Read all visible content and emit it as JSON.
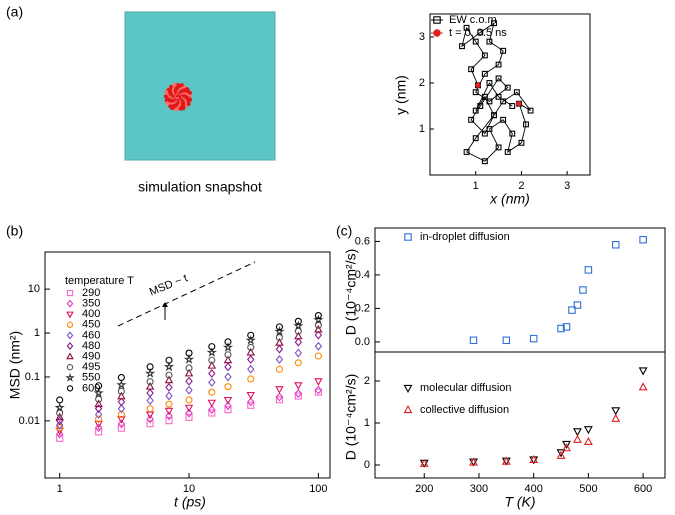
{
  "panel_labels": [
    "(a)",
    "(b)",
    "(c)"
  ],
  "snapshot_caption": "simulation snapshot",
  "chart_data": [
    {
      "type": "line",
      "xlabel": "x (nm)",
      "ylabel": "y (nm)",
      "xlim": [
        0,
        3.5
      ],
      "ylim": [
        0,
        3.5
      ],
      "xticks": [
        1,
        2,
        3
      ],
      "yticks": [
        1,
        2,
        3
      ],
      "series": [
        {
          "name": "EW c.o.m",
          "color": "#000000",
          "marker": "square",
          "filled": false,
          "x": [
            1.05,
            0.9,
            1.2,
            1.0,
            0.8,
            0.7,
            1.1,
            1.4,
            1.3,
            1.6,
            1.5,
            1.2,
            1.0,
            1.3,
            1.7,
            1.5,
            1.1,
            0.9,
            1.2,
            1.4,
            1.0,
            0.8,
            1.2,
            1.5,
            1.3,
            1.6,
            1.8,
            1.7,
            2.0,
            2.1,
            1.95,
            2.2,
            1.9,
            1.6,
            1.4,
            1.2,
            1.0,
            1.3,
            1.5,
            1.8
          ],
          "values": [
            1.95,
            2.3,
            2.6,
            2.9,
            3.2,
            2.8,
            3.1,
            3.3,
            2.9,
            2.7,
            2.4,
            2.2,
            1.8,
            1.6,
            1.9,
            2.1,
            1.5,
            1.2,
            0.9,
            1.3,
            0.8,
            0.5,
            0.3,
            0.6,
            1.0,
            1.2,
            0.9,
            0.5,
            0.7,
            1.1,
            1.55,
            1.4,
            1.8,
            1.6,
            1.3,
            1.7,
            1.4,
            2.0,
            1.7,
            1.5
          ]
        },
        {
          "name": "t = 0, 0.5 ns",
          "color": "#e02020",
          "marker": "circle",
          "filled": true,
          "x": [
            1.05,
            1.95
          ],
          "values": [
            1.95,
            1.55
          ]
        }
      ]
    },
    {
      "type": "scatter",
      "xlabel": "t (ps)",
      "ylabel": "MSD (nm²)",
      "log_x": true,
      "log_y": true,
      "xlim": [
        0.77,
        123
      ],
      "ylim": [
        0.0005,
        70
      ],
      "xticks": [
        1,
        10,
        100
      ],
      "yticks": [
        0.01,
        0.1,
        1,
        10
      ],
      "legend_title": "temperature T",
      "annotation": "MSD ~ t",
      "x": [
        1,
        2,
        3,
        5,
        7,
        10,
        15,
        20,
        30,
        50,
        70,
        100
      ],
      "series": [
        {
          "name": "290",
          "color": "#ff66cc",
          "marker": "square",
          "values": [
            0.004,
            0.0056,
            0.0068,
            0.0086,
            0.0101,
            0.012,
            0.0151,
            0.0179,
            0.0226,
            0.0302,
            0.0367,
            0.045
          ]
        },
        {
          "name": "350",
          "color": "#d63fbf",
          "marker": "diamond",
          "values": [
            0.005,
            0.007,
            0.0085,
            0.011,
            0.013,
            0.015,
            0.018,
            0.022,
            0.027,
            0.035,
            0.042,
            0.05
          ]
        },
        {
          "name": "400",
          "color": "#e0115f",
          "marker": "triangle-down",
          "values": [
            0.006,
            0.0086,
            0.011,
            0.014,
            0.017,
            0.02,
            0.026,
            0.03,
            0.039,
            0.053,
            0.065,
            0.08
          ]
        },
        {
          "name": "450",
          "color": "#ff8800",
          "marker": "circle",
          "values": [
            0.007,
            0.011,
            0.014,
            0.019,
            0.024,
            0.03,
            0.045,
            0.06,
            0.09,
            0.15,
            0.21,
            0.3
          ]
        },
        {
          "name": "460",
          "color": "#7b52c7",
          "marker": "diamond",
          "values": [
            0.008,
            0.014,
            0.019,
            0.029,
            0.037,
            0.05,
            0.075,
            0.1,
            0.15,
            0.25,
            0.35,
            0.5
          ]
        },
        {
          "name": "480",
          "color": "#8b1a89",
          "marker": "diamond",
          "values": [
            0.01,
            0.019,
            0.027,
            0.043,
            0.058,
            0.08,
            0.12,
            0.17,
            0.25,
            0.43,
            0.62,
            0.9
          ]
        },
        {
          "name": "490",
          "color": "#8b0a3a",
          "marker": "triangle-up",
          "values": [
            0.012,
            0.024,
            0.036,
            0.06,
            0.084,
            0.12,
            0.18,
            0.24,
            0.36,
            0.6,
            0.84,
            1.2
          ]
        },
        {
          "name": "495",
          "color": "#555555",
          "marker": "circle",
          "values": [
            0.015,
            0.031,
            0.047,
            0.078,
            0.11,
            0.16,
            0.24,
            0.32,
            0.47,
            0.79,
            1.1,
            1.5
          ]
        },
        {
          "name": "550",
          "color": "#333333",
          "marker": "star",
          "values": [
            0.02,
            0.043,
            0.066,
            0.12,
            0.17,
            0.25,
            0.36,
            0.47,
            0.68,
            1.08,
            1.45,
            2
          ]
        },
        {
          "name": "600",
          "color": "#000000",
          "marker": "circle",
          "values": [
            0.03,
            0.063,
            0.097,
            0.17,
            0.24,
            0.35,
            0.49,
            0.63,
            0.89,
            1.38,
            1.85,
            2.5
          ]
        }
      ]
    },
    {
      "type": "scatter",
      "ylabel": "D (10⁻⁴cm²/s)",
      "xlim": [
        110,
        640
      ],
      "ylim": [
        -0.06,
        0.68
      ],
      "yticks": [
        {
          "value": 0,
          "label": "0.0"
        },
        0.2,
        0.4,
        0.6
      ],
      "series": [
        {
          "name": "in-droplet diffusion",
          "color": "#2f6fd6",
          "marker": "square",
          "x": [
            290,
            350,
            400,
            450,
            460,
            470,
            480,
            490,
            500,
            550,
            600
          ],
          "values": [
            0.01,
            0.01,
            0.02,
            0.08,
            0.09,
            0.19,
            0.22,
            0.31,
            0.43,
            0.58,
            0.61
          ]
        }
      ]
    },
    {
      "type": "scatter",
      "xlabel": "T (K)",
      "ylabel": "D (10⁻⁴cm²/s)",
      "xlim": [
        110,
        640
      ],
      "ylim": [
        -0.31,
        2.69
      ],
      "xticks": [
        200,
        300,
        400,
        500,
        600
      ],
      "yticks": [
        0,
        1,
        2
      ],
      "series": [
        {
          "name": "molecular diffusion",
          "color": "#000000",
          "marker": "triangle-down",
          "x": [
            200,
            290,
            350,
            400,
            450,
            460,
            480,
            500,
            550,
            600
          ],
          "values": [
            0.05,
            0.08,
            0.1,
            0.13,
            0.3,
            0.5,
            0.8,
            0.85,
            1.3,
            2.25
          ]
        },
        {
          "name": "collective diffusion",
          "color": "#e02020",
          "marker": "triangle-up",
          "x": [
            200,
            290,
            350,
            400,
            450,
            460,
            480,
            500,
            550,
            600
          ],
          "values": [
            0.03,
            0.06,
            0.08,
            0.12,
            0.22,
            0.4,
            0.6,
            0.55,
            1.1,
            1.85
          ]
        }
      ]
    }
  ]
}
